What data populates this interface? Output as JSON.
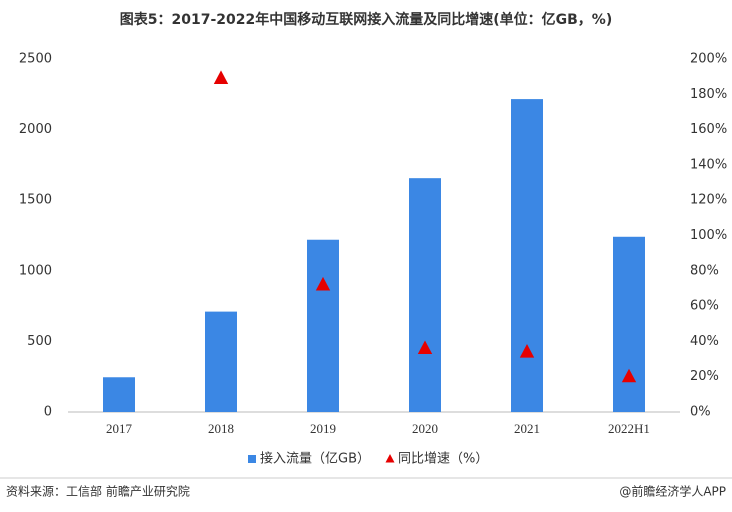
{
  "chart_data": {
    "type": "bar_line",
    "title": "图表5：2017-2022年中国移动互联网接入流量及同比增速(单位：亿GB，%)",
    "categories": [
      "2017",
      "2018",
      "2019",
      "2020",
      "2021",
      "2022H1"
    ],
    "series": [
      {
        "name": "接入流量（亿GB）",
        "type": "bar",
        "color": "#3b87e4",
        "values": [
          246,
          711,
          1220,
          1656,
          2216,
          1241
        ]
      },
      {
        "name": "同比增速（%）",
        "type": "scatter",
        "marker": "triangle",
        "axis": "y2",
        "color": "#e60000",
        "values": [
          null,
          189,
          72,
          36,
          34,
          20
        ]
      }
    ],
    "ylim": [
      0,
      2500
    ],
    "yticks": [
      0,
      500,
      1000,
      1500,
      2000,
      2500
    ],
    "y2lim": [
      0,
      200
    ],
    "y2ticks": [
      {
        "value": 0,
        "label": "0%"
      },
      {
        "value": 20,
        "label": "20%"
      },
      {
        "value": 40,
        "label": "40%"
      },
      {
        "value": 60,
        "label": "60%"
      },
      {
        "value": 80,
        "label": "80%"
      },
      {
        "value": 100,
        "label": "100%"
      },
      {
        "value": 120,
        "label": "120%"
      },
      {
        "value": 140,
        "label": "140%"
      },
      {
        "value": 160,
        "label": "160%"
      },
      {
        "value": 180,
        "label": "180%"
      },
      {
        "value": 200,
        "label": "200%"
      }
    ],
    "grid": false,
    "legend": "bottom",
    "source": "资料来源：工信部 前瞻产业研究院",
    "brand": "@前瞻经济学人APP"
  }
}
